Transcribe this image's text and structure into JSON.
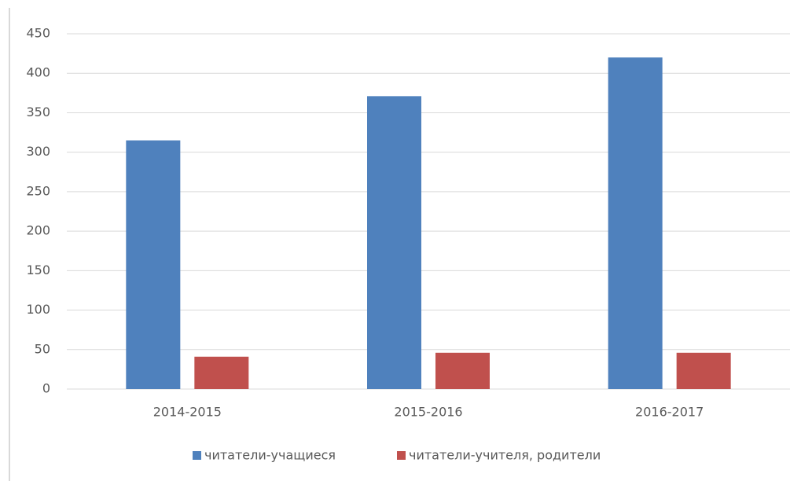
{
  "chart_data": {
    "type": "bar",
    "categories": [
      "2014-2015",
      "2015-2016",
      "2016-2017"
    ],
    "series": [
      {
        "name": "читатели-учащиеся",
        "color": "#4f81bd",
        "values": [
          315,
          371,
          420
        ]
      },
      {
        "name": "читатели-учителя, родители",
        "color": "#c0504d",
        "values": [
          41,
          46,
          46
        ]
      }
    ],
    "ylim": [
      0,
      450
    ],
    "yticks": [
      0,
      50,
      100,
      150,
      200,
      250,
      300,
      350,
      400,
      450
    ],
    "grid": true,
    "legend": "bottom"
  }
}
